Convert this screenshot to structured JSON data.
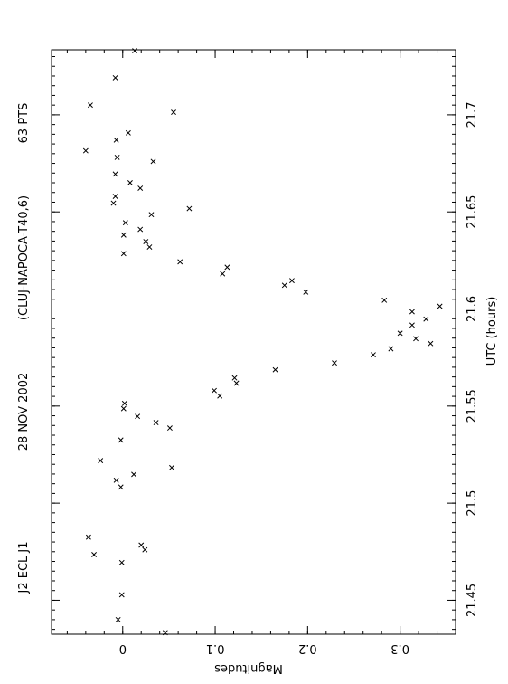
{
  "header": {
    "object": "J2 ECL J1",
    "date": "28 NOV 2002",
    "observatory": "(CLUJ-NAPOCA-T40,6)",
    "points": "63  PTS"
  },
  "chart_data": {
    "type": "scatter",
    "orientation": "rotated-90-clockwise",
    "xlabel": "UTC (hours)",
    "ylabel": "Magnitudes",
    "xlim": [
      21.4325,
      21.7335
    ],
    "ylim": [
      -0.077,
      0.36
    ],
    "y_inverted": true,
    "marker": "x",
    "x_ticks": [
      21.45,
      21.5,
      21.55,
      21.6,
      21.65,
      21.7
    ],
    "x_tick_labels": [
      "21.45",
      "21.5",
      "21.55",
      "21.6",
      "21.65",
      "21.7"
    ],
    "y_ticks": [
      0,
      0.1,
      0.2,
      0.3
    ],
    "y_tick_labels": [
      "0",
      "0.1",
      "0.2",
      "0.3"
    ],
    "points": [
      {
        "x": 21.4333,
        "y": 0.046
      },
      {
        "x": 21.44,
        "y": -0.005
      },
      {
        "x": 21.4528,
        "y": -0.001
      },
      {
        "x": 21.4694,
        "y": -0.001
      },
      {
        "x": 21.4735,
        "y": -0.031
      },
      {
        "x": 21.476,
        "y": 0.024
      },
      {
        "x": 21.4784,
        "y": 0.02
      },
      {
        "x": 21.4825,
        "y": -0.037
      },
      {
        "x": 21.5083,
        "y": -0.002
      },
      {
        "x": 21.5118,
        "y": -0.007
      },
      {
        "x": 21.5148,
        "y": 0.012
      },
      {
        "x": 21.5183,
        "y": 0.053
      },
      {
        "x": 21.5219,
        "y": -0.024
      },
      {
        "x": 21.5325,
        "y": -0.002
      },
      {
        "x": 21.5387,
        "y": 0.051
      },
      {
        "x": 21.5415,
        "y": 0.036
      },
      {
        "x": 21.5447,
        "y": 0.016
      },
      {
        "x": 21.5487,
        "y": 0.001
      },
      {
        "x": 21.5514,
        "y": 0.002
      },
      {
        "x": 21.5552,
        "y": 0.105
      },
      {
        "x": 21.558,
        "y": 0.099
      },
      {
        "x": 21.5618,
        "y": 0.123
      },
      {
        "x": 21.5645,
        "y": 0.121
      },
      {
        "x": 21.5687,
        "y": 0.165
      },
      {
        "x": 21.5722,
        "y": 0.229
      },
      {
        "x": 21.5764,
        "y": 0.271
      },
      {
        "x": 21.5795,
        "y": 0.29
      },
      {
        "x": 21.5822,
        "y": 0.333
      },
      {
        "x": 21.5847,
        "y": 0.317
      },
      {
        "x": 21.5875,
        "y": 0.3
      },
      {
        "x": 21.5917,
        "y": 0.313
      },
      {
        "x": 21.5948,
        "y": 0.328
      },
      {
        "x": 21.5986,
        "y": 0.313
      },
      {
        "x": 21.6014,
        "y": 0.343
      },
      {
        "x": 21.6045,
        "y": 0.283
      },
      {
        "x": 21.6087,
        "y": 0.198
      },
      {
        "x": 21.6146,
        "y": 0.183
      },
      {
        "x": 21.6122,
        "y": 0.175
      },
      {
        "x": 21.6181,
        "y": 0.108
      },
      {
        "x": 21.6215,
        "y": 0.113
      },
      {
        "x": 21.6243,
        "y": 0.062
      },
      {
        "x": 21.6285,
        "y": 0.001
      },
      {
        "x": 21.6319,
        "y": 0.029
      },
      {
        "x": 21.6347,
        "y": 0.025
      },
      {
        "x": 21.6381,
        "y": 0.001
      },
      {
        "x": 21.641,
        "y": 0.019
      },
      {
        "x": 21.6444,
        "y": 0.003
      },
      {
        "x": 21.6486,
        "y": 0.031
      },
      {
        "x": 21.6517,
        "y": 0.072
      },
      {
        "x": 21.6545,
        "y": -0.01
      },
      {
        "x": 21.658,
        "y": -0.008
      },
      {
        "x": 21.6622,
        "y": 0.019
      },
      {
        "x": 21.665,
        "y": 0.008
      },
      {
        "x": 21.6695,
        "y": -0.008
      },
      {
        "x": 21.676,
        "y": 0.033
      },
      {
        "x": 21.6781,
        "y": -0.006
      },
      {
        "x": 21.6815,
        "y": -0.04
      },
      {
        "x": 21.687,
        "y": -0.007
      },
      {
        "x": 21.6907,
        "y": 0.006
      },
      {
        "x": 21.7013,
        "y": 0.055
      },
      {
        "x": 21.705,
        "y": -0.035
      },
      {
        "x": 21.7191,
        "y": -0.008
      },
      {
        "x": 21.733,
        "y": 0.013
      }
    ]
  }
}
